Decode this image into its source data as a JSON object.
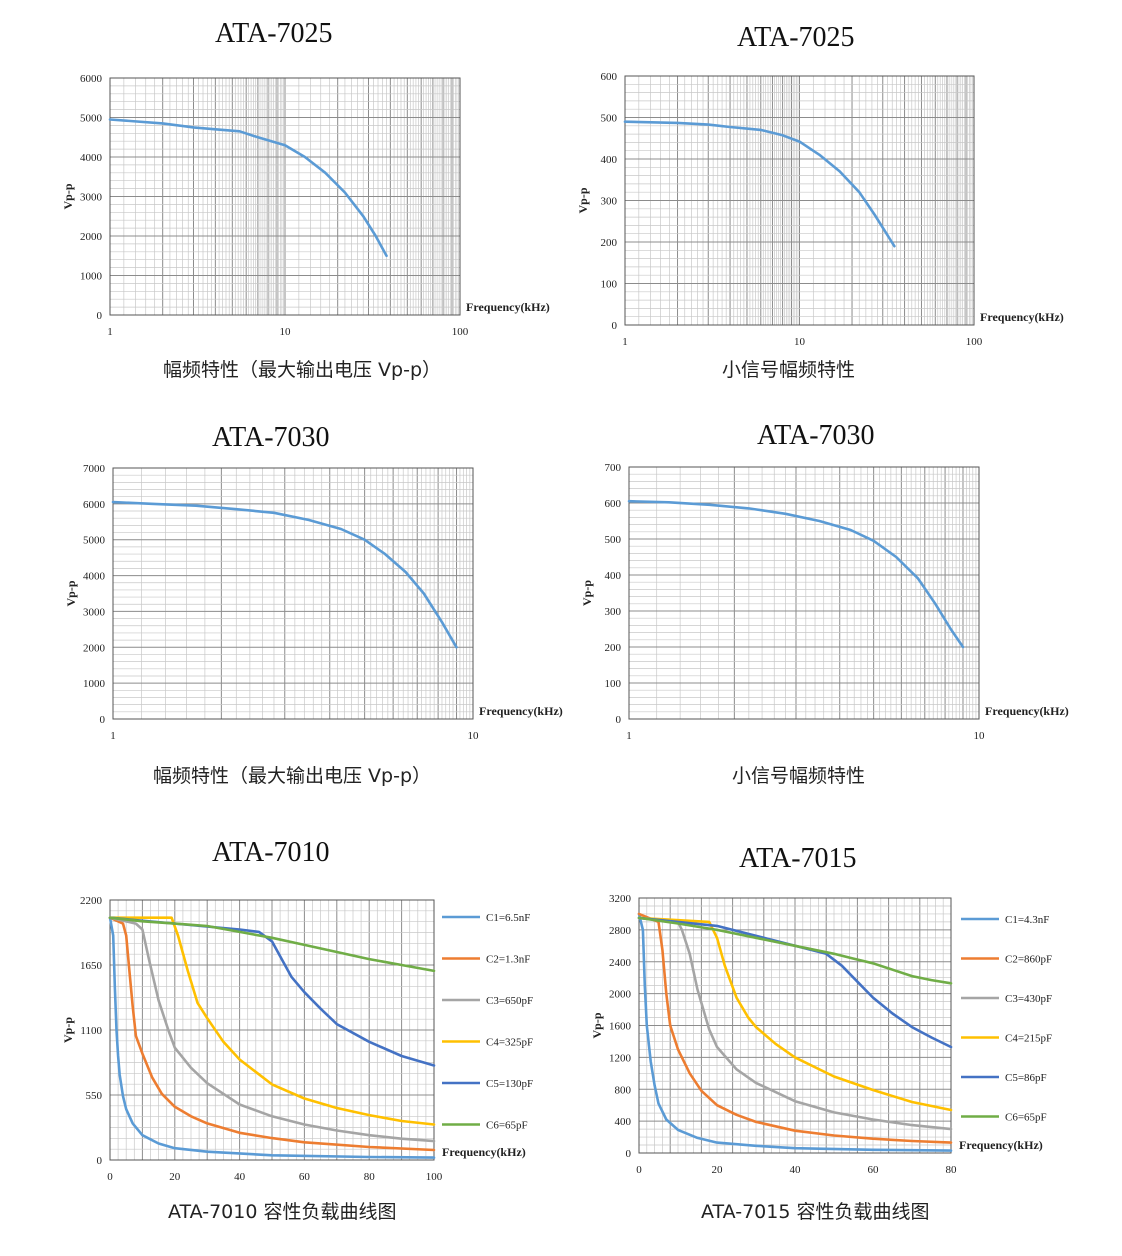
{
  "chart_data": [
    {
      "id": "c1",
      "type": "line",
      "title": "ATA-7025",
      "caption": "幅频特性（最大输出电压 Vp-p）",
      "xlabel": "Frequency(kHz)",
      "ylabel": "Vp-p",
      "xscale": "log",
      "xlim": [
        1,
        100
      ],
      "ylim": [
        0,
        6000
      ],
      "xticks": [
        1,
        10,
        100
      ],
      "yticks": [
        0,
        1000,
        2000,
        3000,
        4000,
        5000,
        6000
      ],
      "grid": true,
      "series": [
        {
          "color": "#5b9bd5",
          "x": [
            1,
            2,
            3,
            4,
            5.5,
            7,
            10,
            13,
            17,
            22,
            28,
            33,
            38
          ],
          "y": [
            4950,
            4850,
            4750,
            4700,
            4650,
            4500,
            4300,
            4000,
            3600,
            3100,
            2500,
            2000,
            1500
          ]
        }
      ]
    },
    {
      "id": "c2",
      "type": "line",
      "title": "ATA-7025",
      "caption": "小信号幅频特性",
      "xlabel": "Frequency(kHz)",
      "ylabel": "Vp-p",
      "xscale": "log",
      "xlim": [
        1,
        100
      ],
      "ylim": [
        0,
        600
      ],
      "xticks": [
        1,
        10,
        100
      ],
      "yticks": [
        0,
        100,
        200,
        300,
        400,
        500,
        600
      ],
      "grid": true,
      "series": [
        {
          "color": "#5b9bd5",
          "x": [
            1,
            2,
            3,
            4,
            6,
            8,
            10,
            13,
            17,
            22,
            27,
            31,
            35
          ],
          "y": [
            490,
            487,
            483,
            477,
            470,
            457,
            442,
            410,
            370,
            320,
            265,
            225,
            190
          ]
        }
      ]
    },
    {
      "id": "c3",
      "type": "line",
      "title": "ATA-7030",
      "caption": "幅频特性（最大输出电压 Vp-p）",
      "xlabel": "Frequency(kHz)",
      "ylabel": "Vp-p",
      "xscale": "log",
      "xlim": [
        1,
        10
      ],
      "ylim": [
        0,
        7000
      ],
      "xticks": [
        1,
        10
      ],
      "yticks": [
        0,
        1000,
        2000,
        3000,
        4000,
        5000,
        6000,
        7000
      ],
      "grid": true,
      "series": [
        {
          "color": "#5b9bd5",
          "x": [
            1,
            1.3,
            1.7,
            2.2,
            2.8,
            3.5,
            4.3,
            5,
            5.7,
            6.5,
            7.3,
            8.2,
            9
          ],
          "y": [
            6050,
            6000,
            5950,
            5850,
            5750,
            5550,
            5300,
            5000,
            4600,
            4100,
            3500,
            2700,
            2000
          ]
        }
      ]
    },
    {
      "id": "c4",
      "type": "line",
      "title": "ATA-7030",
      "caption": "小信号幅频特性",
      "xlabel": "Frequency(kHz)",
      "ylabel": "Vp-p",
      "xscale": "log",
      "xlim": [
        1,
        10
      ],
      "ylim": [
        0,
        700
      ],
      "xticks": [
        1,
        10
      ],
      "yticks": [
        0,
        100,
        200,
        300,
        400,
        500,
        600,
        700
      ],
      "grid": true,
      "series": [
        {
          "color": "#5b9bd5",
          "x": [
            1,
            1.3,
            1.7,
            2.2,
            2.8,
            3.5,
            4.3,
            5,
            5.8,
            6.7,
            7.5,
            8.3,
            9
          ],
          "y": [
            605,
            602,
            595,
            585,
            570,
            550,
            525,
            495,
            450,
            390,
            320,
            250,
            200
          ]
        }
      ]
    },
    {
      "id": "c5",
      "type": "line",
      "title": "ATA-7010",
      "caption": "ATA-7010 容性负载曲线图",
      "xlabel": "Frequency(kHz)",
      "ylabel": "Vp-p",
      "xscale": "linear",
      "xlim": [
        0,
        100
      ],
      "ylim": [
        0,
        2200
      ],
      "xticks": [
        0,
        20,
        40,
        60,
        80,
        100
      ],
      "yticks": [
        0,
        550,
        1100,
        1650,
        2200
      ],
      "grid": true,
      "legend_position": "right",
      "series": [
        {
          "name": "C1=6.5nF",
          "color": "#5b9bd5",
          "x": [
            0,
            1,
            1.5,
            2,
            2.5,
            3,
            4,
            5,
            7,
            10,
            15,
            20,
            30,
            50,
            80,
            100
          ],
          "y": [
            2050,
            1900,
            1450,
            1100,
            880,
            720,
            540,
            430,
            310,
            210,
            140,
            100,
            70,
            40,
            25,
            20
          ]
        },
        {
          "name": "C2=1.3nF",
          "color": "#ed7d31",
          "x": [
            0,
            4,
            5,
            6,
            7,
            8,
            10,
            13,
            16,
            20,
            25,
            30,
            40,
            50,
            60,
            80,
            100
          ],
          "y": [
            2050,
            2000,
            1900,
            1600,
            1300,
            1050,
            900,
            700,
            560,
            450,
            370,
            310,
            230,
            185,
            150,
            110,
            85
          ]
        },
        {
          "name": "C3=650pF",
          "color": "#a5a5a5",
          "x": [
            0,
            8,
            10,
            12,
            15,
            18,
            20,
            25,
            30,
            40,
            50,
            60,
            70,
            80,
            90,
            100
          ],
          "y": [
            2050,
            2000,
            1950,
            1700,
            1350,
            1100,
            950,
            780,
            650,
            470,
            370,
            300,
            250,
            210,
            180,
            160
          ]
        },
        {
          "name": "C4=325pF",
          "color": "#ffc000",
          "x": [
            0,
            19,
            21,
            24,
            27,
            30,
            35,
            40,
            50,
            60,
            70,
            80,
            90,
            100
          ],
          "y": [
            2050,
            2050,
            1900,
            1600,
            1330,
            1200,
            1000,
            850,
            640,
            520,
            440,
            380,
            330,
            300
          ]
        },
        {
          "name": "C5=130pF",
          "color": "#4472c4",
          "x": [
            0,
            40,
            46,
            50,
            53,
            56,
            60,
            65,
            70,
            80,
            90,
            100
          ],
          "y": [
            2050,
            1950,
            1930,
            1850,
            1700,
            1550,
            1420,
            1280,
            1150,
            1000,
            880,
            800
          ]
        },
        {
          "name": "C6=65pF",
          "color": "#70ad47",
          "x": [
            0,
            10,
            20,
            30,
            40,
            50,
            60,
            70,
            80,
            90,
            100
          ],
          "y": [
            2050,
            2020,
            2000,
            1980,
            1930,
            1880,
            1820,
            1760,
            1700,
            1650,
            1600
          ]
        }
      ]
    },
    {
      "id": "c6",
      "type": "line",
      "title": "ATA-7015",
      "caption": "ATA-7015 容性负载曲线图",
      "xlabel": "Frequency(kHz)",
      "ylabel": "Vp-p",
      "xscale": "linear",
      "xlim": [
        0,
        80
      ],
      "ylim": [
        0,
        3200
      ],
      "xticks": [
        0,
        20,
        40,
        60,
        80
      ],
      "yticks": [
        0,
        400,
        800,
        1200,
        1600,
        2000,
        2400,
        2800,
        3200
      ],
      "grid": true,
      "legend_position": "right",
      "series": [
        {
          "name": "C1=4.3nF",
          "color": "#5b9bd5",
          "x": [
            0,
            1,
            1.5,
            2,
            3,
            4,
            5,
            7,
            10,
            15,
            20,
            30,
            40,
            60,
            80
          ],
          "y": [
            3000,
            2800,
            2100,
            1600,
            1150,
            850,
            620,
            420,
            290,
            190,
            130,
            90,
            60,
            40,
            30
          ]
        },
        {
          "name": "C2=860pF",
          "color": "#ed7d31",
          "x": [
            0,
            5,
            6,
            7,
            8,
            10,
            13,
            16,
            20,
            25,
            30,
            40,
            50,
            60,
            70,
            80
          ],
          "y": [
            3000,
            2900,
            2550,
            2000,
            1600,
            1300,
            1000,
            780,
            600,
            480,
            390,
            280,
            220,
            180,
            150,
            130
          ]
        },
        {
          "name": "C3=430pF",
          "color": "#a5a5a5",
          "x": [
            0,
            10,
            11,
            13,
            15,
            18,
            20,
            25,
            30,
            40,
            50,
            60,
            70,
            80
          ],
          "y": [
            2950,
            2900,
            2800,
            2500,
            2050,
            1550,
            1330,
            1050,
            880,
            650,
            510,
            420,
            350,
            300
          ]
        },
        {
          "name": "C4=215pF",
          "color": "#ffc000",
          "x": [
            0,
            18,
            20,
            22,
            25,
            28,
            30,
            35,
            40,
            50,
            60,
            70,
            80
          ],
          "y": [
            2950,
            2900,
            2700,
            2350,
            1950,
            1700,
            1580,
            1370,
            1200,
            960,
            790,
            640,
            540
          ]
        },
        {
          "name": "C5=86pF",
          "color": "#4472c4",
          "x": [
            0,
            20,
            40,
            48,
            52,
            56,
            60,
            65,
            70,
            75,
            80
          ],
          "y": [
            2950,
            2850,
            2600,
            2500,
            2350,
            2150,
            1950,
            1750,
            1580,
            1450,
            1330
          ]
        },
        {
          "name": "C6=65pF",
          "color": "#70ad47",
          "x": [
            0,
            10,
            20,
            30,
            40,
            50,
            55,
            60,
            65,
            70,
            75,
            80
          ],
          "y": [
            2950,
            2880,
            2800,
            2700,
            2600,
            2500,
            2440,
            2380,
            2300,
            2220,
            2170,
            2130
          ]
        }
      ]
    }
  ]
}
